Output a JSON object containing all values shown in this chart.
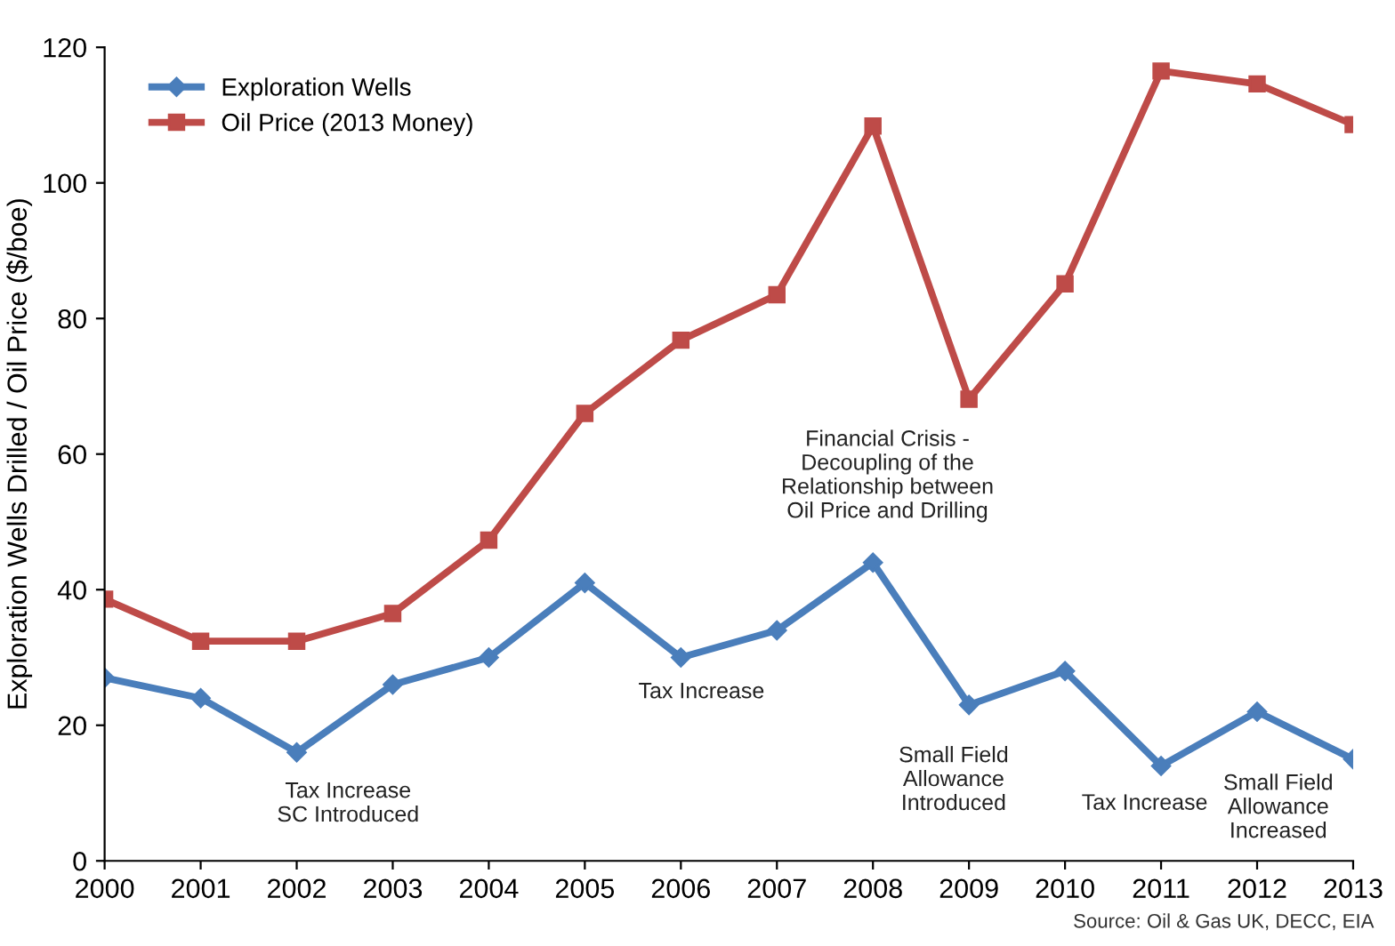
{
  "chart_data": {
    "type": "line",
    "ylabel": "Exploration Wells Drilled / Oil Price ($/boe)",
    "x": [
      2000,
      2001,
      2002,
      2003,
      2004,
      2005,
      2006,
      2007,
      2008,
      2009,
      2010,
      2011,
      2012,
      2013
    ],
    "xlim": [
      2000,
      2013
    ],
    "xticks": [
      2000,
      2001,
      2002,
      2003,
      2004,
      2005,
      2006,
      2007,
      2008,
      2009,
      2010,
      2011,
      2012,
      2013
    ],
    "ylim": [
      0,
      120
    ],
    "yticks": [
      0,
      20,
      40,
      60,
      80,
      100,
      120
    ],
    "grid": false,
    "legend": "top left",
    "series": [
      {
        "name": "Exploration Wells",
        "color": "#4a7ebb",
        "marker": "diamond",
        "values": [
          27,
          24,
          16,
          26,
          30,
          41,
          30,
          34,
          44,
          23,
          28,
          14,
          22,
          15
        ]
      },
      {
        "name": "Oil Price (2013 Money)",
        "color": "#be4b48",
        "marker": "square",
        "values": [
          38.6,
          32.4,
          32.4,
          36.5,
          47.3,
          66,
          76.8,
          83.5,
          108.4,
          68.1,
          85.1,
          116.5,
          114.6,
          108.6
        ]
      }
    ],
    "annotations": [
      "Tax Increase\nSC Introduced",
      "Tax Increase",
      "Financial Crisis -\nDecoupling of the\nRelationship between\nOil Price and Drilling",
      "Small Field\nAllowance\nIntroduced",
      "Tax Increase",
      "Small Field\nAllowance\nIncreased",
      "Source: Oil & Gas UK, DECC, EIA"
    ]
  }
}
